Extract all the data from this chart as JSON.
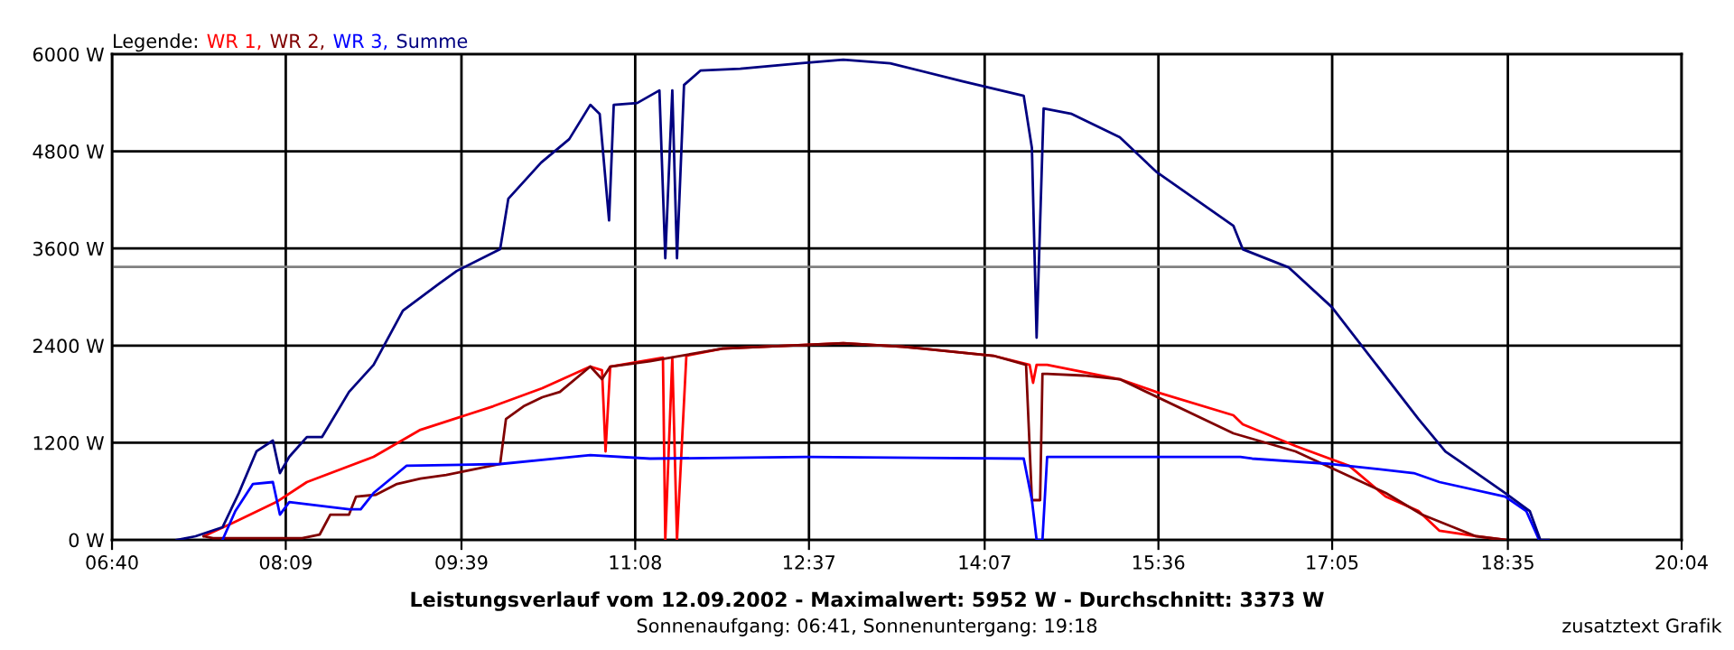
{
  "chart_data": {
    "type": "line",
    "title": "Leistungsverlauf vom 12.09.2002 - Maximalwert: 5952 W - Durchschnitt: 3373 W",
    "subtitle": "Sonnenaufgang: 06:41, Sonnenuntergang: 19:18",
    "legend_title": "Legende:",
    "legend": "top left",
    "grid": true,
    "line_style": "solid",
    "marker": "none",
    "annotations": [
      "zusatztext Grafik"
    ],
    "xlim": [
      6.6667,
      20.0667
    ],
    "ylim": [
      0,
      6000
    ],
    "xticks": [
      {
        "value": 6.6667,
        "label": "06:40"
      },
      {
        "value": 8.15,
        "label": "08:09"
      },
      {
        "value": 9.65,
        "label": "09:39"
      },
      {
        "value": 11.1333,
        "label": "11:08"
      },
      {
        "value": 12.6167,
        "label": "12:37"
      },
      {
        "value": 14.1167,
        "label": "14:07"
      },
      {
        "value": 15.6,
        "label": "15:36"
      },
      {
        "value": 17.0833,
        "label": "17:05"
      },
      {
        "value": 18.5833,
        "label": "18:35"
      },
      {
        "value": 20.0667,
        "label": "20:04"
      }
    ],
    "yticks": [
      {
        "value": 0,
        "label": "0 W"
      },
      {
        "value": 1200,
        "label": "1200 W"
      },
      {
        "value": 2400,
        "label": "2400 W"
      },
      {
        "value": 3600,
        "label": "3600 W"
      },
      {
        "value": 4800,
        "label": "4800 W"
      },
      {
        "value": 6000,
        "label": "6000 W"
      }
    ],
    "ref_lines": [
      {
        "axis": "y",
        "value": 3373,
        "color": "#808080"
      }
    ],
    "series": [
      {
        "name": "WR 1,",
        "color": "#ff0000",
        "x": [
          7.45,
          7.75,
          8.07,
          8.33,
          8.9,
          9.3,
          9.92,
          10.34,
          10.75,
          10.85,
          10.88,
          10.92,
          11.37,
          11.39,
          11.45,
          11.49,
          11.57,
          11.88,
          12.91,
          13.42,
          14.19,
          14.5,
          14.53,
          14.56,
          14.65,
          15.27,
          15.58,
          16.24,
          16.32,
          16.77,
          17.23,
          17.54,
          17.82,
          18.0,
          18.31,
          18.56
        ],
        "values": [
          45,
          245,
          468,
          714,
          1026,
          1360,
          1650,
          1873,
          2141,
          2096,
          1093,
          2141,
          2252,
          0,
          2252,
          0,
          2275,
          2364,
          2431,
          2386,
          2275,
          2163,
          1940,
          2163,
          2163,
          1985,
          1828,
          1539,
          1427,
          1160,
          914,
          535,
          357,
          112,
          45,
          0
        ]
      },
      {
        "name": "WR 2,",
        "color": "#800000",
        "x": [
          7.45,
          7.53,
          8.29,
          8.44,
          8.53,
          8.69,
          8.75,
          8.92,
          9.1,
          9.3,
          9.52,
          9.98,
          10.03,
          10.18,
          10.34,
          10.49,
          10.75,
          10.85,
          10.92,
          11.26,
          11.88,
          12.91,
          13.42,
          14.19,
          14.47,
          14.52,
          14.59,
          14.61,
          14.65,
          14.96,
          15.27,
          16.24,
          16.77,
          17.54,
          17.85,
          18.31,
          18.56
        ],
        "values": [
          45,
          22,
          22,
          67,
          312,
          312,
          535,
          558,
          691,
          758,
          803,
          937,
          1494,
          1650,
          1762,
          1828,
          2141,
          1985,
          2141,
          2208,
          2364,
          2431,
          2386,
          2275,
          2163,
          491,
          491,
          2052,
          2052,
          2030,
          1985,
          1316,
          1093,
          580,
          312,
          45,
          0
        ]
      },
      {
        "name": "WR 3,",
        "color": "#0000ff",
        "x": [
          7.61,
          7.72,
          7.87,
          8.04,
          8.1,
          8.18,
          8.69,
          8.79,
          8.9,
          9.18,
          9.98,
          10.75,
          11.26,
          12.6,
          14.45,
          14.52,
          14.56,
          14.61,
          14.65,
          14.96,
          16.3,
          16.4,
          17.08,
          17.78,
          18.0,
          18.56,
          18.74,
          18.85
        ],
        "values": [
          0,
          357,
          691,
          714,
          312,
          468,
          379,
          379,
          580,
          915,
          937,
          1048,
          1004,
          1026,
          1004,
          491,
          0,
          0,
          1026,
          1026,
          1026,
          1004,
          937,
          825,
          714,
          535,
          357,
          0
        ]
      },
      {
        "name": "Summe",
        "color": "#000080",
        "x": [
          7.22,
          7.38,
          7.61,
          7.75,
          7.9,
          8.04,
          8.1,
          8.18,
          8.33,
          8.46,
          8.69,
          8.9,
          9.15,
          9.46,
          9.61,
          9.98,
          10.05,
          10.33,
          10.57,
          10.75,
          10.83,
          10.91,
          10.95,
          11.15,
          11.34,
          11.39,
          11.45,
          11.49,
          11.55,
          11.69,
          12.03,
          12.54,
          12.91,
          13.31,
          13.93,
          14.45,
          14.52,
          14.56,
          14.62,
          14.86,
          15.27,
          15.58,
          16.24,
          16.32,
          16.71,
          17.08,
          17.82,
          18.05,
          18.56,
          18.77,
          18.86,
          18.93
        ],
        "values": [
          0,
          45,
          156,
          580,
          1094,
          1227,
          825,
          1026,
          1271,
          1271,
          1828,
          2163,
          2832,
          3166,
          3322,
          3590,
          4214,
          4660,
          4950,
          5374,
          5262,
          3947,
          5374,
          5396,
          5552,
          3479,
          5552,
          3479,
          5619,
          5797,
          5820,
          5887,
          5932,
          5887,
          5664,
          5485,
          4839,
          2498,
          5329,
          5262,
          4973,
          4549,
          3880,
          3590,
          3367,
          2876,
          1494,
          1093,
          580,
          357,
          0,
          0
        ]
      }
    ]
  }
}
